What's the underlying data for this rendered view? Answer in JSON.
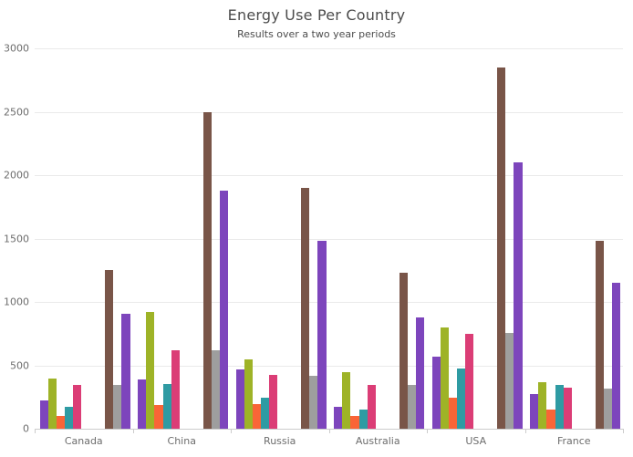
{
  "chart_data": {
    "type": "bar",
    "title": "Energy Use Per Country",
    "subtitle": "Results over a two year periods",
    "categories": [
      "Canada",
      "China",
      "Russia",
      "Australia",
      "USA",
      "France"
    ],
    "y_ticks": [
      0,
      500,
      1000,
      1500,
      2000,
      2500,
      3000
    ],
    "ylim": [
      0,
      3000
    ],
    "grid": true,
    "legend": false,
    "series": [
      {
        "name": "purple",
        "color": "#7D45BC",
        "cluster": "A",
        "values": [
          220,
          390,
          470,
          175,
          570,
          270
        ]
      },
      {
        "name": "olive",
        "color": "#9EB327",
        "cluster": "A",
        "values": [
          395,
          920,
          550,
          445,
          800,
          370
        ]
      },
      {
        "name": "orange",
        "color": "#F96537",
        "cluster": "A",
        "values": [
          100,
          190,
          195,
          100,
          245,
          150
        ]
      },
      {
        "name": "teal",
        "color": "#2F9BA3",
        "cluster": "A",
        "values": [
          175,
          350,
          245,
          150,
          475,
          345
        ]
      },
      {
        "name": "pink",
        "color": "#DB3D76",
        "cluster": "A",
        "values": [
          345,
          620,
          425,
          345,
          750,
          325
        ]
      },
      {
        "name": "brown",
        "color": "#795548",
        "cluster": "B",
        "values": [
          1250,
          2500,
          1900,
          1230,
          2850,
          1480
        ]
      },
      {
        "name": "gray",
        "color": "#9E9E9E",
        "cluster": "B",
        "values": [
          345,
          620,
          420,
          345,
          755,
          320
        ]
      },
      {
        "name": "violet",
        "color": "#7D45BC",
        "cluster": "B",
        "values": [
          905,
          1880,
          1480,
          875,
          2100,
          1150
        ]
      }
    ]
  }
}
